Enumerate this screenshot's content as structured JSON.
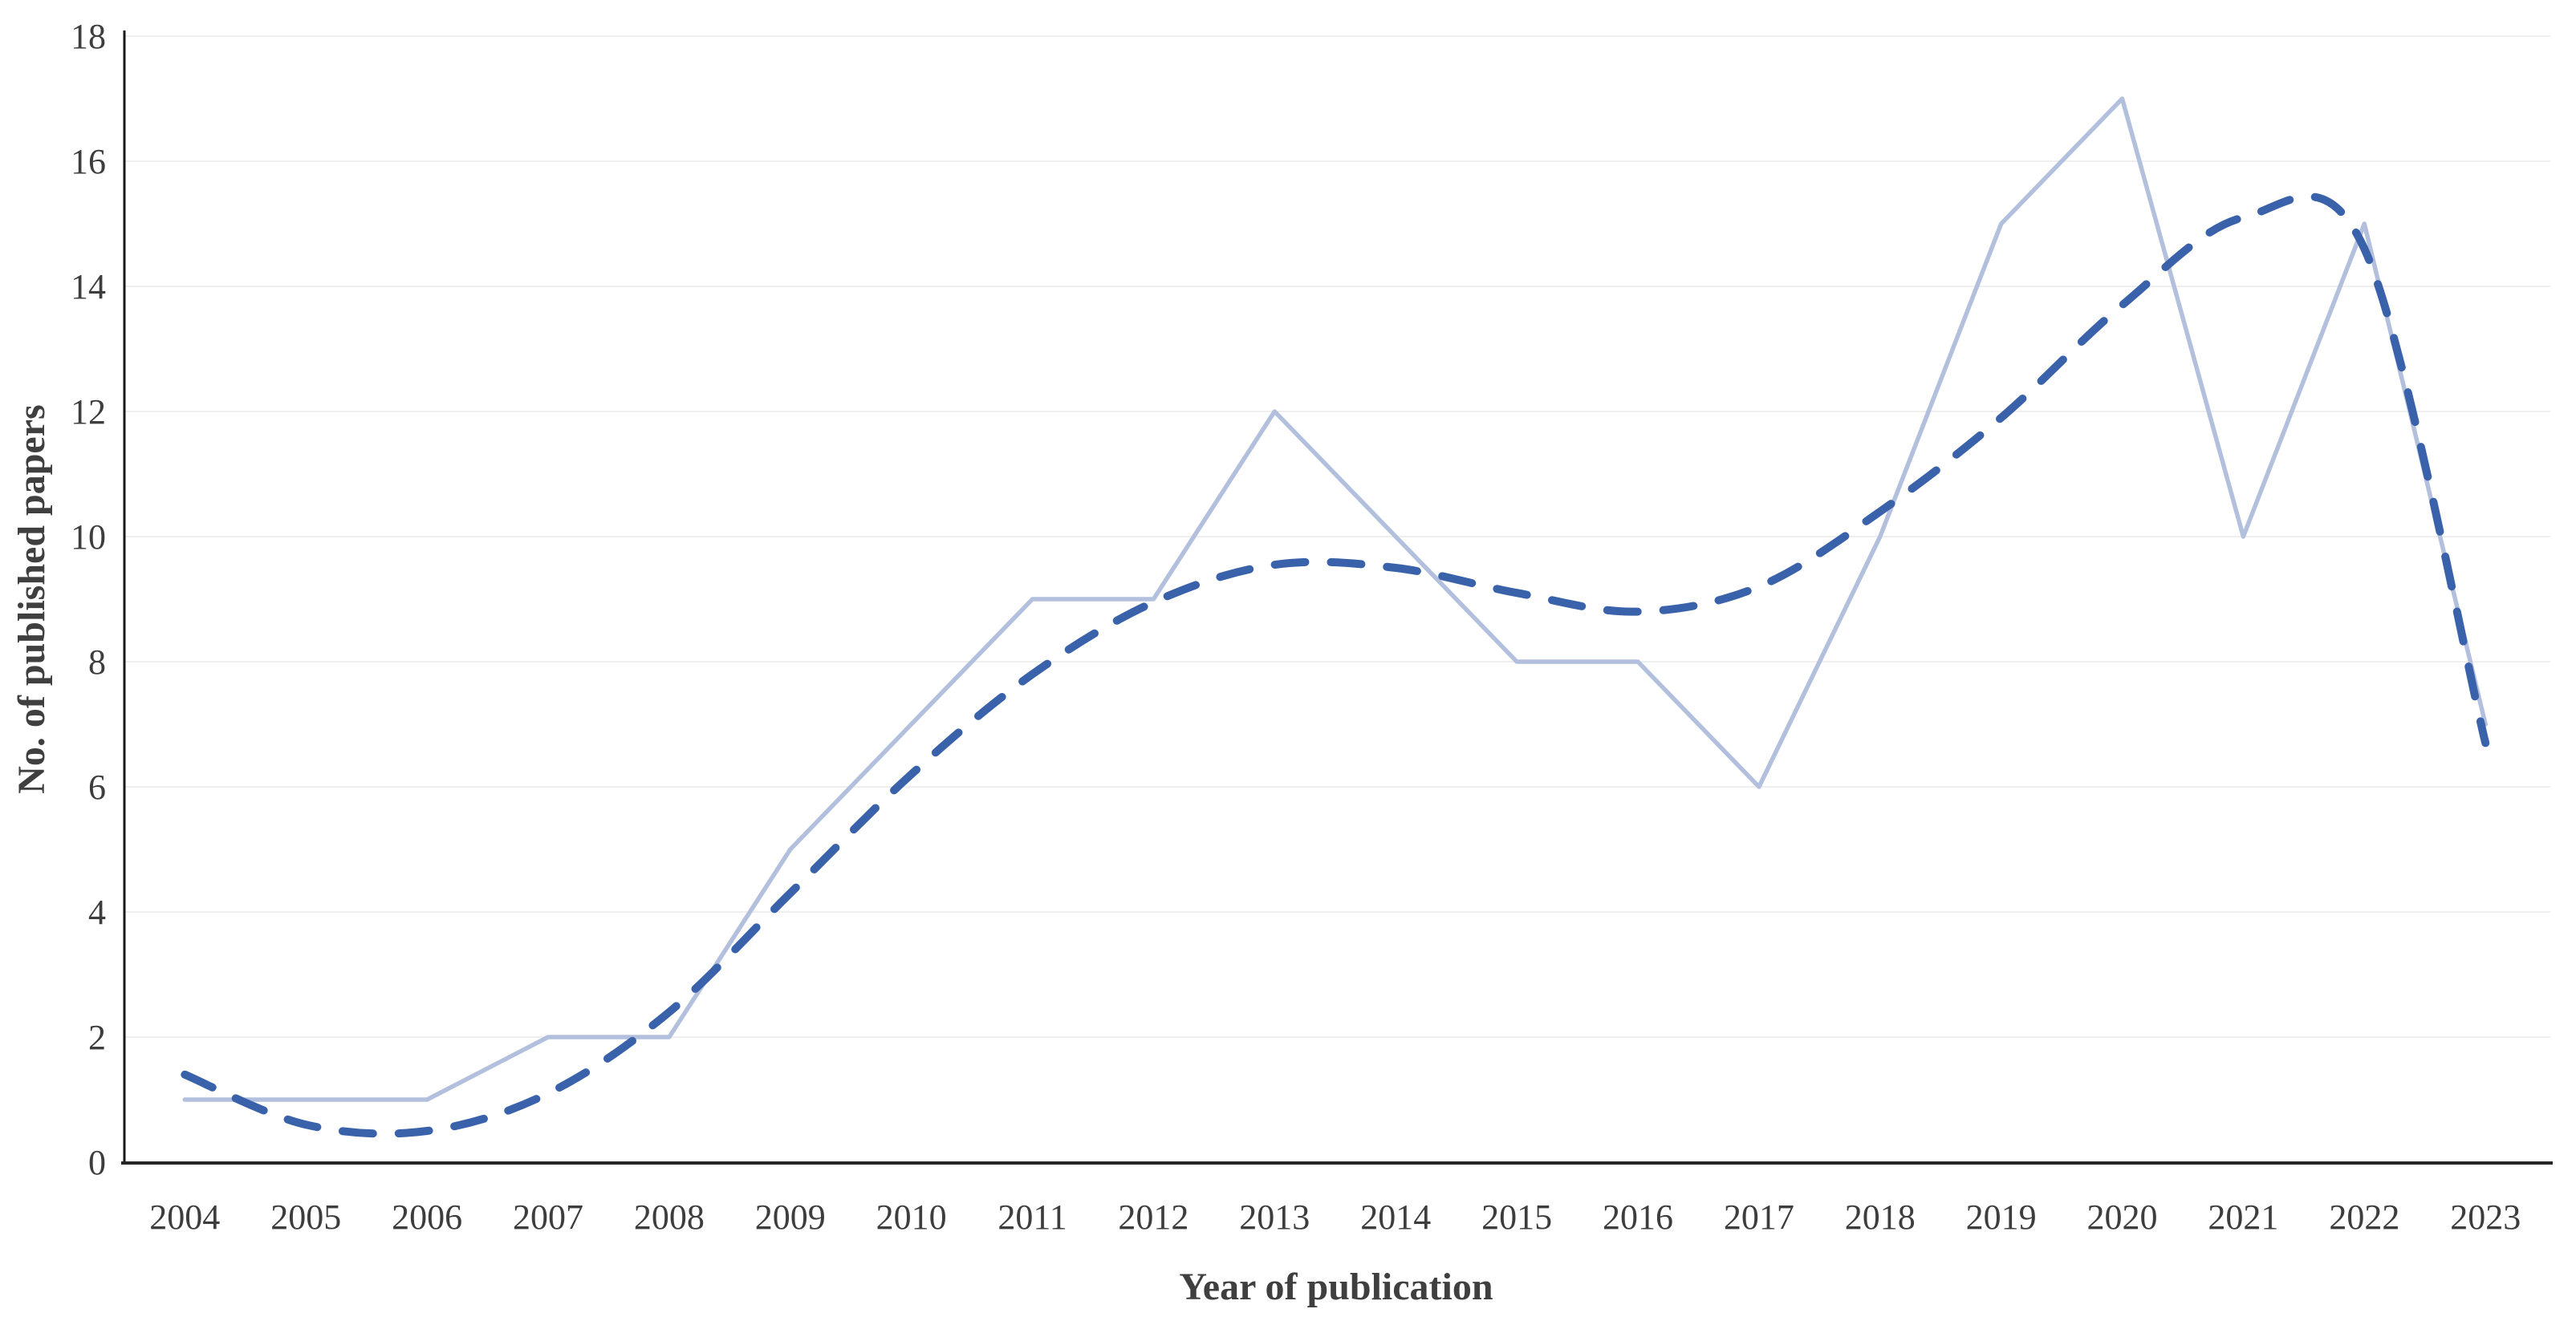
{
  "figure": {
    "xlabel": "Year of publication",
    "ylabel": "No. of published papers"
  },
  "chart_data": {
    "type": "line",
    "title": "",
    "categories": [
      "2004",
      "2005",
      "2006",
      "2007",
      "2008",
      "2009",
      "2010",
      "2011",
      "2012",
      "2013",
      "2014",
      "2015",
      "2016",
      "2017",
      "2018",
      "2019",
      "2020",
      "2021",
      "2022",
      "2023"
    ],
    "series": [
      {
        "name": "No. of published papers",
        "style": "solid",
        "color": "#b3c0dd",
        "values": [
          1,
          1,
          1,
          2,
          2,
          5,
          7,
          9,
          9,
          12,
          10,
          8,
          8,
          6,
          10,
          15,
          17,
          10,
          15,
          7
        ]
      },
      {
        "name": "polynomial-trendline",
        "style": "dashed",
        "color": "#3a62ab",
        "values": [
          1.4,
          0.6,
          0.5,
          1.1,
          2.4,
          4.3,
          6.2,
          7.8,
          8.95,
          9.55,
          9.5,
          9.1,
          8.8,
          9.2,
          10.4,
          11.9,
          13.7,
          15.1,
          14.6,
          6.7
        ]
      }
    ],
    "xlabel": "Year of publication",
    "ylabel": "No. of published papers",
    "ylim": [
      0,
      18
    ],
    "ytick_step": 2,
    "grid": true,
    "legend": "none",
    "colors": {
      "grid": "#efefef",
      "x_axis": "#262626",
      "y_axis": "#1a1a1a",
      "tick_text": "#3d3d3d",
      "title_text": "#3f3f3f"
    }
  }
}
